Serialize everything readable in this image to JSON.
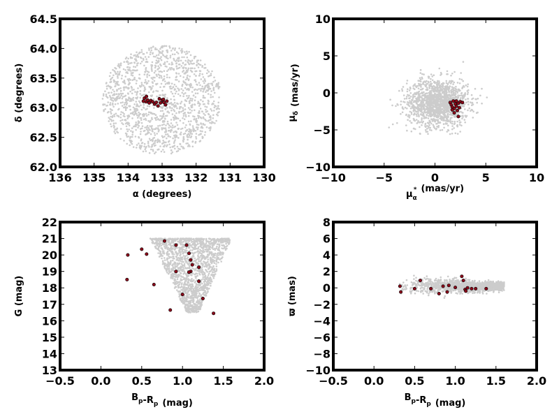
{
  "figure": {
    "colors": {
      "background": "#cccccc",
      "members": "#8b0a1a",
      "member_edge": "#000000"
    }
  },
  "chart_data": [
    {
      "id": "ra-dec",
      "type": "scatter",
      "xlabel": "α (degrees)",
      "ylabel": "δ (degrees)",
      "xlim": [
        136,
        130
      ],
      "ylim": [
        62.0,
        64.5
      ],
      "xticks": [
        "136",
        "135",
        "134",
        "133",
        "132",
        "131",
        "130"
      ],
      "yticks": [
        "62.0",
        "62.5",
        "63.0",
        "63.5",
        "64.0",
        "64.5"
      ],
      "grid": false,
      "background_distribution": {
        "shape": "disk",
        "center": [
          133.0,
          63.13
        ],
        "radius_x": 1.75,
        "radius_y": 0.92,
        "count": 1500
      },
      "series": [
        {
          "role": "members",
          "points": [
            [
              133.52,
              63.16
            ],
            [
              133.47,
              63.1
            ],
            [
              133.43,
              63.13
            ],
            [
              133.38,
              63.08
            ],
            [
              133.33,
              63.12
            ],
            [
              133.28,
              63.1
            ],
            [
              133.22,
              63.06
            ],
            [
              133.17,
              63.09
            ],
            [
              133.12,
              63.03
            ],
            [
              133.05,
              63.08
            ],
            [
              133.0,
              63.13
            ],
            [
              132.95,
              63.09
            ],
            [
              132.9,
              63.05
            ],
            [
              132.86,
              63.11
            ],
            [
              133.46,
              63.19
            ],
            [
              133.55,
              63.11
            ],
            [
              133.08,
              63.15
            ],
            [
              132.96,
              63.14
            ]
          ]
        }
      ]
    },
    {
      "id": "proper-motion",
      "type": "scatter",
      "xlabel": "μ",
      "xlabel_sub": "α",
      "xlabel_sup": "*",
      "xlabel_rest": "(mas/yr)",
      "ylabel": "μ",
      "ylabel_sub": "δ",
      "ylabel_rest": "(mas/yr)",
      "xlim": [
        -10,
        10
      ],
      "ylim": [
        -10,
        10
      ],
      "xticks": [
        "−10",
        "−5",
        "0",
        "5",
        "10"
      ],
      "yticks": [
        "−10",
        "−5",
        "0",
        "5",
        "10"
      ],
      "grid": false,
      "background_distribution": {
        "shape": "blob",
        "center": [
          0.3,
          -1.3
        ],
        "spread": [
          1.5,
          1.6
        ],
        "count": 1500
      },
      "series": [
        {
          "role": "members",
          "points": [
            [
              1.5,
              -1.3
            ],
            [
              1.6,
              -1.6
            ],
            [
              1.7,
              -1.9
            ],
            [
              1.8,
              -1.1
            ],
            [
              1.9,
              -2.1
            ],
            [
              2.0,
              -1.5
            ],
            [
              2.1,
              -1.8
            ],
            [
              2.2,
              -2.4
            ],
            [
              2.3,
              -1.4
            ],
            [
              2.5,
              -1.2
            ],
            [
              2.7,
              -1.3
            ],
            [
              1.9,
              -2.7
            ],
            [
              2.3,
              -3.2
            ],
            [
              1.7,
              -2.3
            ],
            [
              2.1,
              -1.1
            ],
            [
              2.4,
              -2.0
            ]
          ]
        }
      ]
    },
    {
      "id": "cmd",
      "type": "scatter",
      "xlabel": "B",
      "xlabel_sub": "p",
      "xlabel_mid": "-R",
      "xlabel_sub2": "p",
      "xlabel_rest": "(mag)",
      "ylabel": "G (mag)",
      "xlim": [
        -0.5,
        2.0
      ],
      "ylim": [
        13,
        22
      ],
      "xticks": [
        "−0.5",
        "0.0",
        "0.5",
        "1.0",
        "1.5",
        "2.0"
      ],
      "yticks": [
        "13",
        "14",
        "15",
        "16",
        "17",
        "18",
        "19",
        "20",
        "21",
        "22"
      ],
      "grid": false,
      "background_distribution": {
        "shape": "wedge",
        "x_range": [
          0.6,
          1.6
        ],
        "y_range": [
          16.5,
          21.0
        ],
        "count": 1700
      },
      "series": [
        {
          "role": "members",
          "points": [
            [
              0.78,
              20.85
            ],
            [
              0.5,
              20.35
            ],
            [
              0.33,
              20.0
            ],
            [
              0.56,
              20.05
            ],
            [
              0.92,
              20.6
            ],
            [
              1.05,
              20.6
            ],
            [
              1.08,
              20.1
            ],
            [
              1.1,
              19.7
            ],
            [
              1.12,
              19.4
            ],
            [
              1.2,
              19.25
            ],
            [
              1.1,
              19.0
            ],
            [
              0.92,
              19.0
            ],
            [
              1.08,
              18.95
            ],
            [
              0.32,
              18.5
            ],
            [
              0.65,
              18.2
            ],
            [
              1.2,
              18.4
            ],
            [
              1.0,
              17.6
            ],
            [
              1.25,
              17.35
            ],
            [
              0.85,
              16.65
            ],
            [
              1.38,
              16.45
            ]
          ]
        }
      ]
    },
    {
      "id": "parallax",
      "type": "scatter",
      "xlabel": "B",
      "xlabel_sub": "p",
      "xlabel_mid": "-R",
      "xlabel_sub2": "p",
      "xlabel_rest": "(mag)",
      "ylabel": "ϖ (mas)",
      "xlim": [
        -0.5,
        2.0
      ],
      "ylim": [
        -10,
        8
      ],
      "xticks": [
        "−0.5",
        "0.0",
        "0.5",
        "1.0",
        "1.5",
        "2.0"
      ],
      "yticks": [
        "−10",
        "−8",
        "−6",
        "−4",
        "−2",
        "0",
        "2",
        "4",
        "6",
        "8"
      ],
      "grid": false,
      "background_distribution": {
        "shape": "band",
        "x_range": [
          0.3,
          1.6
        ],
        "y_center": 0.2,
        "y_spread": 0.9,
        "count": 1600
      },
      "series": [
        {
          "role": "members",
          "points": [
            [
              0.32,
              0.2
            ],
            [
              0.33,
              -0.5
            ],
            [
              0.5,
              -0.1
            ],
            [
              0.57,
              0.9
            ],
            [
              0.7,
              -0.1
            ],
            [
              0.8,
              -0.7
            ],
            [
              0.85,
              0.2
            ],
            [
              0.9,
              -0.5
            ],
            [
              0.92,
              0.3
            ],
            [
              1.0,
              0.05
            ],
            [
              1.08,
              1.4
            ],
            [
              1.1,
              0.9
            ],
            [
              1.12,
              -0.2
            ],
            [
              1.13,
              -0.4
            ],
            [
              1.15,
              0.0
            ],
            [
              1.2,
              -0.1
            ],
            [
              1.25,
              -0.1
            ],
            [
              1.38,
              -0.1
            ]
          ]
        }
      ]
    }
  ]
}
